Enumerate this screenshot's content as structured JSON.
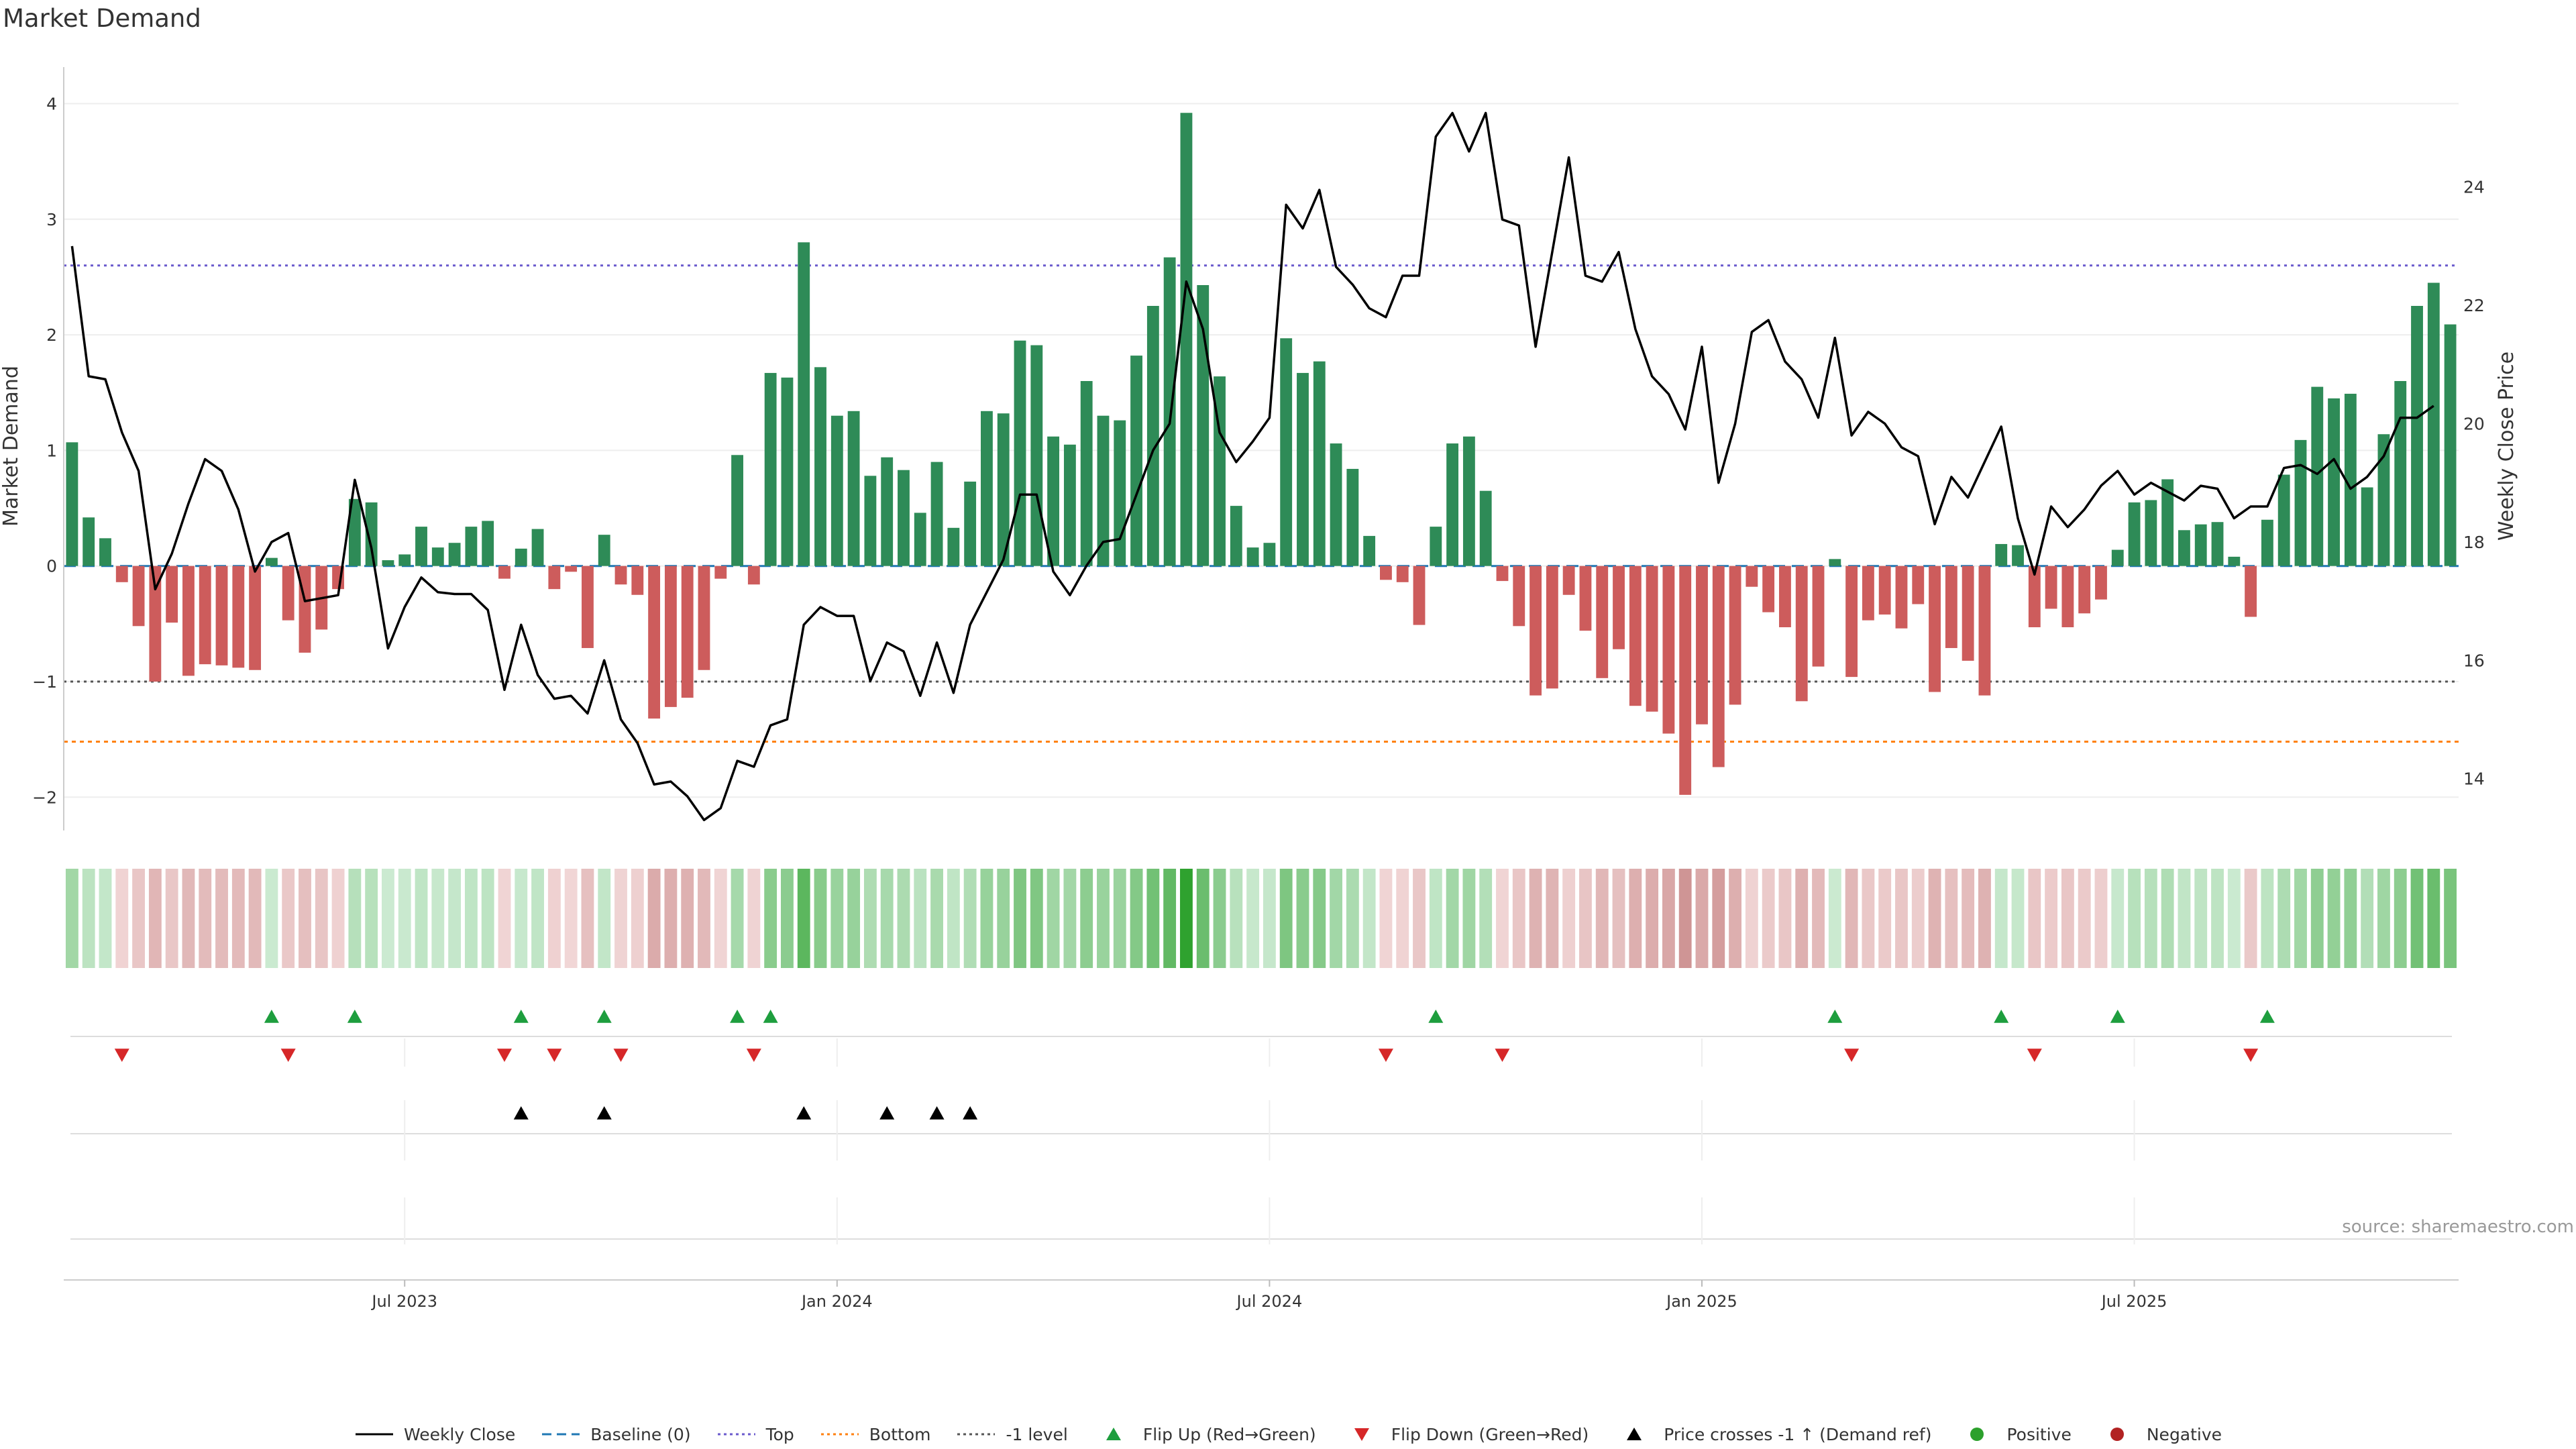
{
  "title": "Market Demand",
  "source": "source: sharemaestro.com",
  "colors": {
    "positive_bar": "#2e8b57",
    "negative_bar": "#cd5c5c",
    "price_line": "#000000",
    "top_line": "#6a5acd",
    "bottom_line": "#ff7f0e",
    "minus1_line": "#555555",
    "baseline": "#1f77b4",
    "flip_up": "#1e9e3e",
    "flip_down": "#d62728",
    "cross": "#000000",
    "positive_dot": "#2ca02c",
    "negative_dot": "#b22222"
  },
  "legend": [
    {
      "label": "Weekly Close",
      "symbol": "line",
      "color": "#000000"
    },
    {
      "label": "Baseline (0)",
      "symbol": "dashed",
      "color": "#1f77b4"
    },
    {
      "label": "Top",
      "symbol": "dotted",
      "color": "#6a5acd"
    },
    {
      "label": "Bottom",
      "symbol": "dotted",
      "color": "#ff7f0e"
    },
    {
      "label": "-1 level",
      "symbol": "dotted",
      "color": "#555555"
    },
    {
      "label": "Flip Up (Red→Green)",
      "symbol": "tri-up",
      "color": "#1e9e3e"
    },
    {
      "label": "Flip Down (Green→Red)",
      "symbol": "tri-down",
      "color": "#d62728"
    },
    {
      "label": "Price crosses -1 ↑ (Demand ref)",
      "symbol": "tri-up",
      "color": "#000000"
    },
    {
      "label": "Positive",
      "symbol": "dot",
      "color": "#2ca02c"
    },
    {
      "label": "Negative",
      "symbol": "dot",
      "color": "#b22222"
    }
  ],
  "chart_data": {
    "type": "bar",
    "title": "Market Demand",
    "ylabel": "Market Demand",
    "y2label": "Weekly Close Price",
    "ylim": [
      -2.3,
      4.2
    ],
    "y2lim": [
      13.1,
      25.8
    ],
    "yticks": [
      -2,
      -1,
      0,
      1,
      2,
      3,
      4
    ],
    "y2ticks": [
      14,
      16,
      18,
      20,
      22,
      24
    ],
    "xticks": [
      "Jul 2023",
      "Jan 2024",
      "Jul 2024",
      "Jan 2025",
      "Jul 2025"
    ],
    "xtick_index": [
      20,
      46,
      72,
      98,
      124
    ],
    "reference_lines": {
      "top": 2.6,
      "bottom": -1.52,
      "minus1_level": -1,
      "baseline": 0
    },
    "series": [
      {
        "name": "Market Demand",
        "values": [
          1.07,
          0.42,
          0.24,
          -0.14,
          -0.52,
          -1.0,
          -0.49,
          -0.95,
          -0.85,
          -0.86,
          -0.88,
          -0.9,
          0.07,
          -0.47,
          -0.75,
          -0.55,
          -0.2,
          0.58,
          0.55,
          0.05,
          0.1,
          0.34,
          0.16,
          0.2,
          0.34,
          0.39,
          -0.11,
          0.15,
          0.32,
          -0.2,
          -0.05,
          -0.71,
          0.27,
          -0.16,
          -0.25,
          -1.32,
          -1.22,
          -1.14,
          -0.9,
          -0.11,
          0.96,
          -0.16,
          1.67,
          1.63,
          2.8,
          1.72,
          1.3,
          1.34,
          0.78,
          0.94,
          0.83,
          0.46,
          0.9,
          0.33,
          0.73,
          1.34,
          1.32,
          1.95,
          1.91,
          1.12,
          1.05,
          1.6,
          1.3,
          1.26,
          1.82,
          2.25,
          2.67,
          3.92,
          2.43,
          1.64,
          0.52,
          0.16,
          0.2,
          1.97,
          1.67,
          1.77,
          1.06,
          0.84,
          0.26,
          -0.12,
          -0.14,
          -0.51,
          0.34,
          1.06,
          1.12,
          0.65,
          -0.13,
          -0.52,
          -1.12,
          -1.06,
          -0.25,
          -0.56,
          -0.97,
          -0.72,
          -1.21,
          -1.26,
          -1.45,
          -1.98,
          -1.37,
          -1.74,
          -1.2,
          -0.18,
          -0.4,
          -0.53,
          -1.17,
          -0.87,
          0.06,
          -0.96,
          -0.47,
          -0.42,
          -0.54,
          -0.33,
          -1.09,
          -0.71,
          -0.82,
          -1.12,
          0.19,
          0.18,
          -0.53,
          -0.37,
          -0.53,
          -0.41,
          -0.29,
          0.14,
          0.55,
          0.57,
          0.75,
          0.31,
          0.36,
          0.38,
          0.08,
          -0.44,
          0.4,
          0.79,
          1.09,
          1.55,
          1.45,
          1.49,
          0.68,
          1.14,
          1.6,
          2.25,
          2.45,
          2.09
        ]
      },
      {
        "name": "Weekly Close",
        "axis": "right",
        "values": [
          23.0,
          20.8,
          20.75,
          19.85,
          19.2,
          17.2,
          17.8,
          18.65,
          19.4,
          19.2,
          18.55,
          17.5,
          18.0,
          18.15,
          17.0,
          17.05,
          17.1,
          19.05,
          17.9,
          16.2,
          16.9,
          17.4,
          17.15,
          17.12,
          17.12,
          16.85,
          15.5,
          16.6,
          15.75,
          15.35,
          15.4,
          15.1,
          16.0,
          15.0,
          14.6,
          13.9,
          13.95,
          13.7,
          13.3,
          13.5,
          14.3,
          14.2,
          14.9,
          15.0,
          16.6,
          16.9,
          16.75,
          16.75,
          15.65,
          16.3,
          16.15,
          15.4,
          16.3,
          15.45,
          16.6,
          17.15,
          17.7,
          18.8,
          18.8,
          17.5,
          17.1,
          17.6,
          18.0,
          18.05,
          18.8,
          19.55,
          20.0,
          22.4,
          21.6,
          19.85,
          19.35,
          19.7,
          20.1,
          23.7,
          23.3,
          23.95,
          22.65,
          22.35,
          21.95,
          21.8,
          22.5,
          22.5,
          24.85,
          25.25,
          24.6,
          25.25,
          23.45,
          23.35,
          21.3,
          22.9,
          24.5,
          22.5,
          22.4,
          22.9,
          21.6,
          20.8,
          20.5,
          19.9,
          21.3,
          19.0,
          20.0,
          21.55,
          21.75,
          21.05,
          20.75,
          20.1,
          21.45,
          19.8,
          20.2,
          20.0,
          19.6,
          19.45,
          18.3,
          19.1,
          18.75,
          19.35,
          19.95,
          18.4,
          17.45,
          18.6,
          18.25,
          18.55,
          18.95,
          19.2,
          18.8,
          19.0,
          18.85,
          18.7,
          18.95,
          18.9,
          18.4,
          18.6,
          18.6,
          19.25,
          19.3,
          19.15,
          19.4,
          18.9,
          19.1,
          19.45,
          20.1,
          20.1,
          20.3
        ]
      }
    ],
    "flip_up_index": [
      12,
      17,
      27,
      32,
      40,
      42,
      82,
      106,
      116,
      123,
      132
    ],
    "flip_down_index": [
      3,
      13,
      26,
      29,
      33,
      41,
      79,
      86,
      107,
      118,
      131
    ],
    "price_cross_index": [
      27,
      32,
      44,
      49,
      52,
      54
    ]
  }
}
